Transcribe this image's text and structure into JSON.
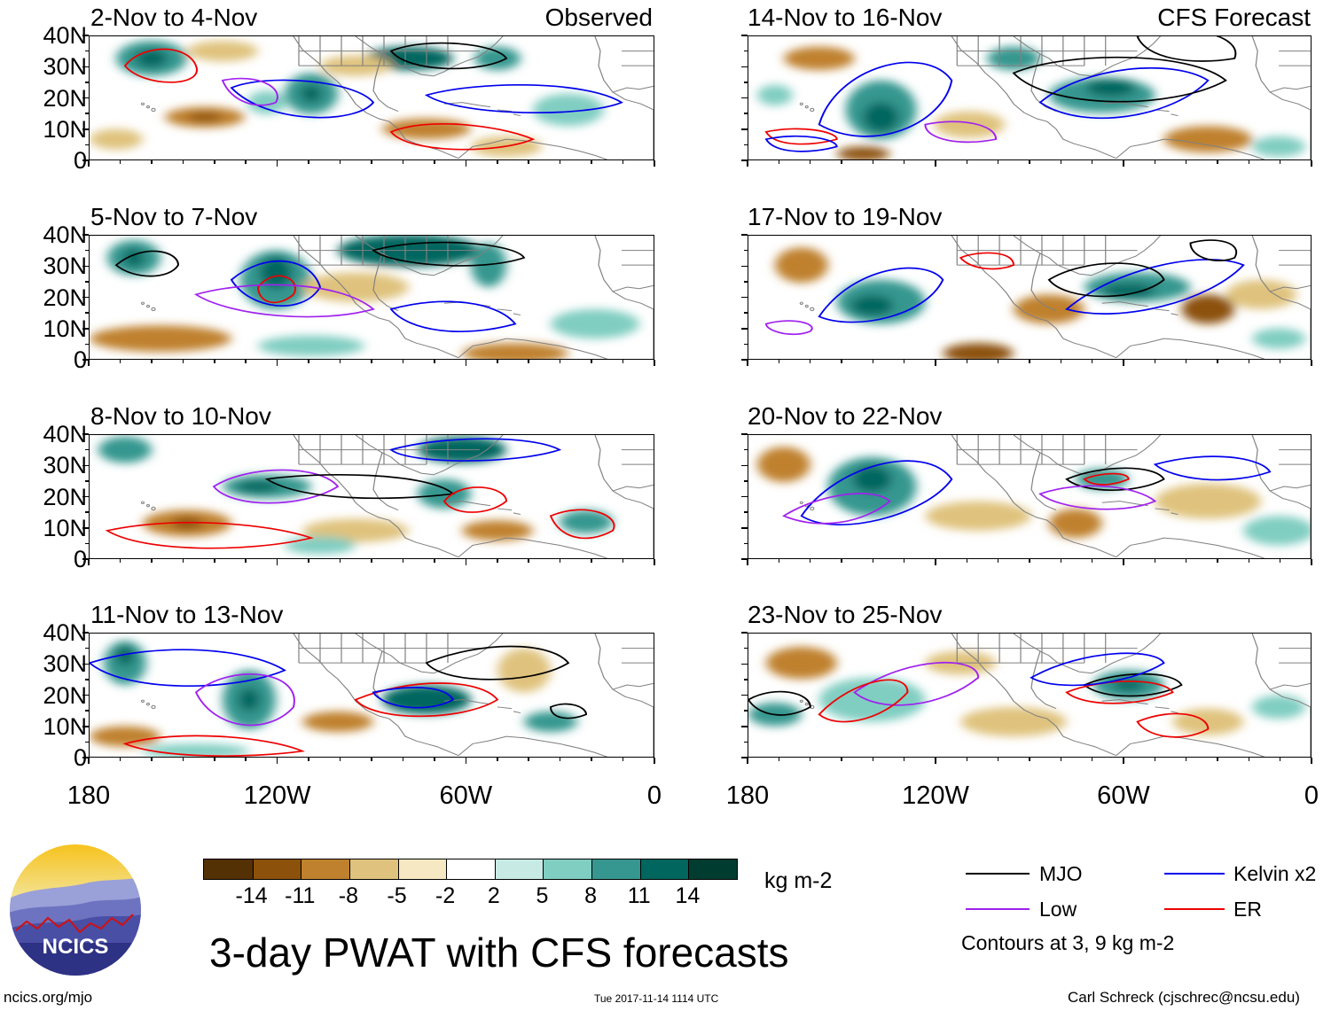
{
  "observed_tag": "Observed",
  "forecast_tag": "CFS Forecast",
  "lat_labels": [
    "40N",
    "30N",
    "20N",
    "10N",
    "0"
  ],
  "lon_labels": [
    "180",
    "120W",
    "60W",
    "0"
  ],
  "panels": [
    {
      "title": "2-Nov to 4-Nov"
    },
    {
      "title": "5-Nov to 7-Nov"
    },
    {
      "title": "8-Nov to 10-Nov"
    },
    {
      "title": "11-Nov to 13-Nov"
    },
    {
      "title": "14-Nov to 16-Nov"
    },
    {
      "title": "17-Nov to 19-Nov"
    },
    {
      "title": "20-Nov to 22-Nov"
    },
    {
      "title": "23-Nov to 25-Nov"
    }
  ],
  "colorbar": {
    "colors": [
      "#543005",
      "#8c510a",
      "#bf812d",
      "#dfc27d",
      "#f6e8c3",
      "#ffffff",
      "#c7eae5",
      "#80cdc1",
      "#35978f",
      "#01665e",
      "#003c30"
    ],
    "ticks": [
      "-14",
      "-11",
      "-8",
      "-5",
      "-2",
      "2",
      "5",
      "8",
      "11",
      "14"
    ],
    "units": "kg m-2"
  },
  "legend": {
    "items": [
      {
        "label": "MJO",
        "color": "#000000"
      },
      {
        "label": "Kelvin x2",
        "color": "#0000ee"
      },
      {
        "label": "Low",
        "color": "#a020f0"
      },
      {
        "label": "ER",
        "color": "#ee0000"
      }
    ],
    "note": "Contours at 3, 9 kg m-2"
  },
  "main_title": "3-day PWAT with CFS forecasts",
  "logo_text": "NCICS",
  "footer": {
    "site": "ncics.org/mjo",
    "timestamp": "Tue 2017-11-14 1114 UTC",
    "credit": "Carl Schreck (cjschrec@ncsu.edu)"
  }
}
